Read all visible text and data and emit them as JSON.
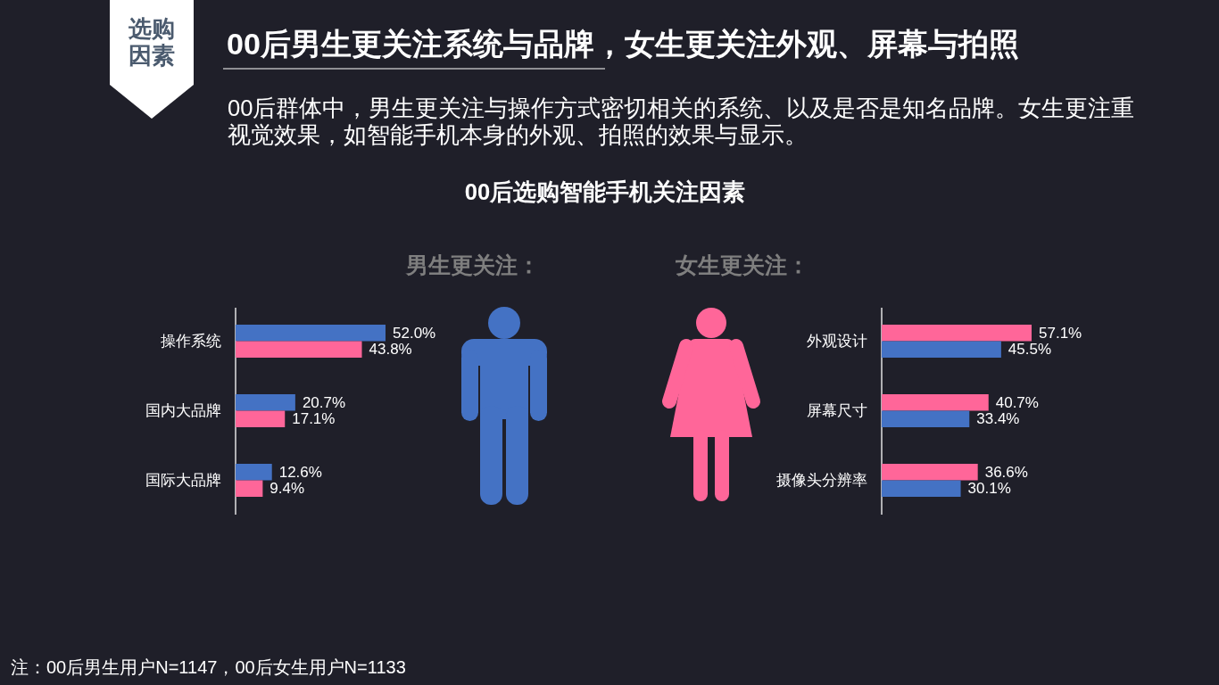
{
  "chart_data": [
    {
      "type": "other",
      "title": "00后男生更关注系统与品牌，女生更关注外观、屏幕与拍照",
      "subtitle": "00后群体中，男生更关注与操作方式密切相关的系统、以及是否是知名品牌。女生更注重视觉效果，如智能手机本身的外观、拍照的效果与显示。",
      "annotations": [
        "选购因素",
        "00后选购智能手机关注因素",
        "男生更关注：",
        "女生更关注：",
        "注：00后男生用户N=1147，00后女生用户N=1133"
      ]
    },
    {
      "type": "bar",
      "orientation": "horizontal",
      "categories": [
        "操作系统",
        "国内大品牌",
        "国际大品牌"
      ],
      "series": [
        {
          "color": "#4472c4",
          "values": [
            52.0,
            20.7,
            12.6
          ],
          "value_labels": [
            "52.0%",
            "20.7%",
            "12.6%"
          ]
        },
        {
          "color": "#ff6699",
          "values": [
            43.8,
            17.1,
            9.4
          ],
          "value_labels": [
            "43.8%",
            "17.1%",
            "9.4%"
          ]
        }
      ]
    },
    {
      "type": "bar",
      "orientation": "horizontal",
      "categories": [
        "外观设计",
        "屏幕尺寸",
        "摄像头分辨率"
      ],
      "series": [
        {
          "color": "#ff6699",
          "values": [
            57.1,
            40.7,
            36.6
          ],
          "value_labels": [
            "57.1%",
            "40.7%",
            "36.6%"
          ]
        },
        {
          "color": "#4472c4",
          "values": [
            45.5,
            33.4,
            30.1
          ],
          "value_labels": [
            "45.5%",
            "33.4%",
            "30.1%"
          ]
        }
      ]
    }
  ]
}
